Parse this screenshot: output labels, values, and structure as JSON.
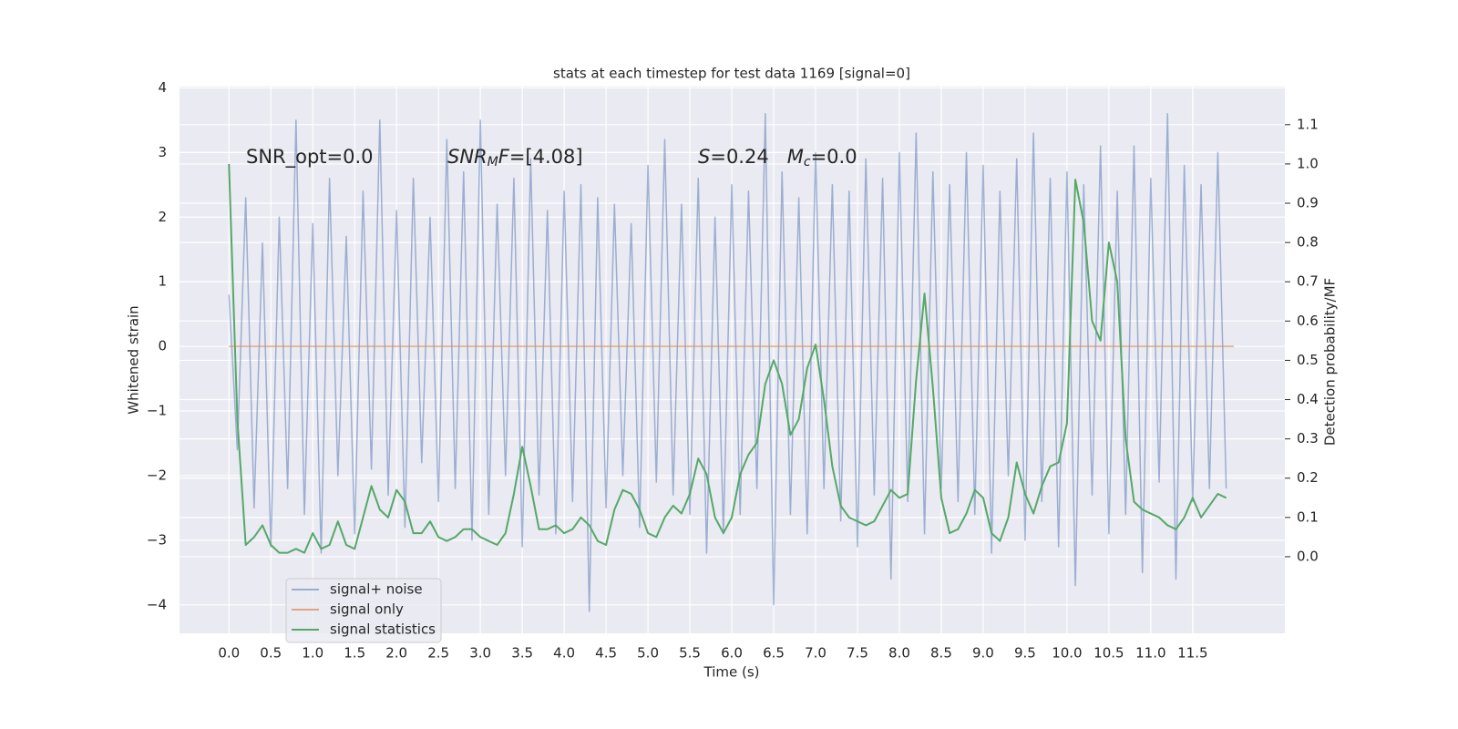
{
  "chart_data": {
    "type": "line",
    "title": "stats at each timestep for test data 1169 [signal=0]",
    "xlabel": "Time (s)",
    "ylabel": "Whitened strain",
    "y2label": "Detection probability/MF",
    "xlim": [
      -0.59,
      12.6
    ],
    "ylim": [
      -4.44,
      4.02
    ],
    "y2lim": [
      -0.195,
      1.197
    ],
    "grid": true,
    "legend": "lower left",
    "xticks": [
      {
        "value": 0,
        "label": "0.0"
      },
      {
        "value": 0.5,
        "label": "0.5"
      },
      {
        "value": 1,
        "label": "1.0"
      },
      {
        "value": 1.5,
        "label": "1.5"
      },
      {
        "value": 2,
        "label": "2.0"
      },
      {
        "value": 2.5,
        "label": "2.5"
      },
      {
        "value": 3,
        "label": "3.0"
      },
      {
        "value": 3.5,
        "label": "3.5"
      },
      {
        "value": 4,
        "label": "4.0"
      },
      {
        "value": 4.5,
        "label": "4.5"
      },
      {
        "value": 5,
        "label": "5.0"
      },
      {
        "value": 5.5,
        "label": "5.5"
      },
      {
        "value": 6,
        "label": "6.0"
      },
      {
        "value": 6.5,
        "label": "6.5"
      },
      {
        "value": 7,
        "label": "7.0"
      },
      {
        "value": 7.5,
        "label": "7.5"
      },
      {
        "value": 8,
        "label": "8.0"
      },
      {
        "value": 8.5,
        "label": "8.5"
      },
      {
        "value": 9,
        "label": "9.0"
      },
      {
        "value": 9.5,
        "label": "9.5"
      },
      {
        "value": 10,
        "label": "10.0"
      },
      {
        "value": 10.5,
        "label": "10.5"
      },
      {
        "value": 11,
        "label": "11.0"
      },
      {
        "value": 11.5,
        "label": "11.5"
      }
    ],
    "yticks": [
      {
        "value": -4,
        "label": "−4"
      },
      {
        "value": -3,
        "label": "−3"
      },
      {
        "value": -2,
        "label": "−2"
      },
      {
        "value": -1,
        "label": "−1"
      },
      0,
      1,
      2,
      3,
      4
    ],
    "y2ticks": [
      {
        "value": 0,
        "label": "0.0"
      },
      0.1,
      0.2,
      0.3,
      0.4,
      0.5,
      0.6,
      0.7,
      0.8,
      0.9,
      {
        "value": 1,
        "label": "1.0"
      },
      1.1
    ],
    "annotations": [
      [
        {
          "text": "SNR_opt=0.0"
        }
      ],
      [
        {
          "text": "SNR",
          "italic": true
        },
        {
          "text": "M",
          "italic": true,
          "sub": true
        },
        {
          "text": "F",
          "italic": true
        },
        {
          "text": "=[4.08]"
        }
      ],
      [
        {
          "text": "S",
          "italic": true
        },
        {
          "text": "=0.24   "
        },
        {
          "text": "M",
          "italic": true
        },
        {
          "text": "c",
          "italic": true,
          "sub": true
        },
        {
          "text": "=0.0"
        }
      ]
    ],
    "x": [
      0.0,
      0.1,
      0.2,
      0.3,
      0.4,
      0.5,
      0.6,
      0.7,
      0.8,
      0.9,
      1.0,
      1.1,
      1.2,
      1.3,
      1.4,
      1.5,
      1.6,
      1.7,
      1.8,
      1.9,
      2.0,
      2.1,
      2.2,
      2.3,
      2.4,
      2.5,
      2.6,
      2.7,
      2.8,
      2.9,
      3.0,
      3.1,
      3.2,
      3.3,
      3.4,
      3.5,
      3.6,
      3.7,
      3.8,
      3.9,
      4.0,
      4.1,
      4.2,
      4.3,
      4.4,
      4.5,
      4.6,
      4.7,
      4.8,
      4.9,
      5.0,
      5.1,
      5.2,
      5.3,
      5.4,
      5.5,
      5.6,
      5.7,
      5.8,
      5.9,
      6.0,
      6.1,
      6.2,
      6.3,
      6.4,
      6.5,
      6.6,
      6.7,
      6.8,
      6.9,
      7.0,
      7.1,
      7.2,
      7.3,
      7.4,
      7.5,
      7.6,
      7.7,
      7.8,
      7.9,
      8.0,
      8.1,
      8.2,
      8.3,
      8.4,
      8.5,
      8.6,
      8.7,
      8.8,
      8.9,
      9.0,
      9.1,
      9.2,
      9.3,
      9.4,
      9.5,
      9.6,
      9.7,
      9.8,
      9.9,
      10.0,
      10.1,
      10.2,
      10.3,
      10.4,
      10.5,
      10.6,
      10.7,
      10.8,
      10.9,
      11.0,
      11.1,
      11.2,
      11.3,
      11.4,
      11.5,
      11.6,
      11.7,
      11.8,
      11.9
    ],
    "series": [
      {
        "name": "signal+ noise",
        "color": "#4c72b0",
        "values": [
          0.8,
          -1.6,
          2.3,
          -2.5,
          1.6,
          -3.1,
          2.0,
          -2.2,
          3.5,
          -2.6,
          1.9,
          -3.2,
          2.6,
          -2.0,
          1.7,
          -2.9,
          2.4,
          -1.9,
          3.5,
          -2.3,
          2.1,
          -2.8,
          2.6,
          -1.8,
          2.0,
          -2.4,
          3.2,
          -2.2,
          2.7,
          -3.0,
          3.5,
          -2.6,
          2.2,
          -2.0,
          2.6,
          -3.1,
          2.9,
          -2.3,
          2.1,
          -2.9,
          2.4,
          -2.4,
          2.5,
          -4.1,
          2.3,
          -2.5,
          2.2,
          -2.0,
          1.9,
          -2.8,
          2.8,
          -2.1,
          3.2,
          -2.3,
          2.2,
          -2.6,
          2.6,
          -3.2,
          2.0,
          -2.9,
          2.5,
          -2.6,
          2.4,
          -2.2,
          3.6,
          -4.0,
          2.7,
          -2.6,
          2.3,
          -2.9,
          3.0,
          -2.2,
          2.5,
          -2.7,
          2.4,
          -3.1,
          2.9,
          -2.3,
          2.6,
          -3.6,
          3.0,
          -2.4,
          3.3,
          -2.9,
          2.7,
          -2.2,
          2.5,
          -2.4,
          3.0,
          -2.6,
          2.8,
          -3.2,
          2.4,
          -2.0,
          2.9,
          -3.0,
          3.3,
          -2.4,
          2.6,
          -3.1,
          2.7,
          -3.7,
          2.5,
          -2.3,
          3.1,
          -2.9,
          2.4,
          -2.6,
          3.1,
          -3.5,
          2.6,
          -2.1,
          3.6,
          -3.6,
          2.8,
          -2.4,
          2.5,
          -2.2,
          3.0,
          -2.2
        ]
      },
      {
        "name": "signal only",
        "color": "#dd8452",
        "x": [
          0.0,
          11.99
        ],
        "values": [
          0,
          0
        ]
      },
      {
        "name": "signal statistics",
        "color": "#55a868",
        "axis": "y2",
        "values": [
          1.0,
          0.35,
          0.03,
          0.05,
          0.08,
          0.03,
          0.01,
          0.01,
          0.02,
          0.01,
          0.06,
          0.02,
          0.03,
          0.09,
          0.03,
          0.02,
          0.1,
          0.18,
          0.12,
          0.1,
          0.17,
          0.14,
          0.06,
          0.06,
          0.09,
          0.05,
          0.04,
          0.05,
          0.07,
          0.07,
          0.05,
          0.04,
          0.03,
          0.06,
          0.16,
          0.28,
          0.18,
          0.07,
          0.07,
          0.08,
          0.06,
          0.07,
          0.1,
          0.08,
          0.04,
          0.03,
          0.12,
          0.17,
          0.16,
          0.12,
          0.06,
          0.05,
          0.1,
          0.13,
          0.11,
          0.16,
          0.25,
          0.21,
          0.1,
          0.06,
          0.1,
          0.21,
          0.26,
          0.29,
          0.44,
          0.5,
          0.44,
          0.31,
          0.35,
          0.48,
          0.54,
          0.4,
          0.23,
          0.13,
          0.1,
          0.09,
          0.08,
          0.09,
          0.13,
          0.17,
          0.15,
          0.16,
          0.45,
          0.67,
          0.43,
          0.15,
          0.06,
          0.07,
          0.11,
          0.17,
          0.15,
          0.06,
          0.04,
          0.1,
          0.24,
          0.16,
          0.11,
          0.18,
          0.23,
          0.24,
          0.34,
          0.96,
          0.85,
          0.6,
          0.55,
          0.8,
          0.7,
          0.3,
          0.14,
          0.12,
          0.11,
          0.1,
          0.08,
          0.07,
          0.1,
          0.15,
          0.1,
          0.13,
          0.16,
          0.15
        ]
      }
    ]
  }
}
